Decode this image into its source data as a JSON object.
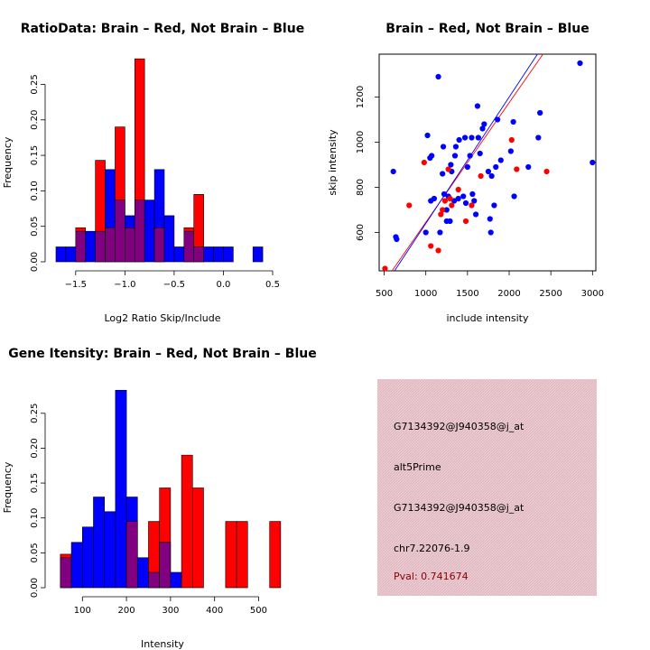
{
  "chart_data": [
    {
      "type": "bar",
      "title": "RatioData: Brain – Red, Not Brain – Blue",
      "xlabel": "Log2 Ratio Skip/Include",
      "ylabel": "Frequency",
      "xlim": [
        -1.7,
        0.5
      ],
      "ylim": [
        0,
        0.29
      ],
      "xticks": [
        -1.5,
        -1.0,
        -0.5,
        0.0,
        0.5
      ],
      "xtick_labels": [
        "−1.5",
        "−1.0",
        "−0.5",
        "0.0",
        "0.5"
      ],
      "yticks": [
        0,
        0.05,
        0.1,
        0.15,
        0.2,
        0.25
      ],
      "ytick_labels": [
        "0.00",
        "0.05",
        "0.10",
        "0.15",
        "0.20",
        "0.25"
      ],
      "series": [
        {
          "name": "Not Brain",
          "color": "#0000ff",
          "bins": [
            [
              -1.7,
              -1.6,
              0.021
            ],
            [
              -1.6,
              -1.5,
              0.021
            ],
            [
              -1.5,
              -1.4,
              0.043
            ],
            [
              -1.4,
              -1.3,
              0.043
            ],
            [
              -1.3,
              -1.2,
              0.043
            ],
            [
              -1.2,
              -1.1,
              0.13
            ],
            [
              -1.1,
              -1.0,
              0.087
            ],
            [
              -1.0,
              -0.9,
              0.065
            ],
            [
              -0.9,
              -0.8,
              0.087
            ],
            [
              -0.8,
              -0.7,
              0.087
            ],
            [
              -0.7,
              -0.6,
              0.13
            ],
            [
              -0.6,
              -0.5,
              0.065
            ],
            [
              -0.5,
              -0.4,
              0.021
            ],
            [
              -0.4,
              -0.3,
              0.043
            ],
            [
              -0.3,
              -0.2,
              0.021
            ],
            [
              -0.2,
              -0.1,
              0.021
            ],
            [
              -0.1,
              0.0,
              0.021
            ],
            [
              0.0,
              0.1,
              0.021
            ],
            [
              0.1,
              0.2,
              0.0
            ],
            [
              0.2,
              0.3,
              0.0
            ],
            [
              0.3,
              0.4,
              0.021
            ]
          ]
        },
        {
          "name": "Brain",
          "color": "#ff0000",
          "bins": [
            [
              -1.5,
              -1.4,
              0.048
            ],
            [
              -1.4,
              -1.3,
              0.0
            ],
            [
              -1.3,
              -1.2,
              0.143
            ],
            [
              -1.2,
              -1.1,
              0.048
            ],
            [
              -1.1,
              -1.0,
              0.19
            ],
            [
              -1.0,
              -0.9,
              0.048
            ],
            [
              -0.9,
              -0.8,
              0.286
            ],
            [
              -0.8,
              -0.7,
              0.0
            ],
            [
              -0.7,
              -0.6,
              0.048
            ],
            [
              -0.6,
              -0.5,
              0.0
            ],
            [
              -0.5,
              -0.4,
              0.0
            ],
            [
              -0.4,
              -0.3,
              0.048
            ],
            [
              -0.3,
              -0.2,
              0.095
            ]
          ]
        }
      ]
    },
    {
      "type": "scatter",
      "title": "Brain – Red, Not Brain – Blue",
      "xlabel": "include intensity",
      "ylabel": "skip intensity",
      "xlim": [
        440,
        3040
      ],
      "ylim": [
        430,
        1390
      ],
      "xticks": [
        500,
        1000,
        1500,
        2000,
        2500,
        3000
      ],
      "xtick_labels": [
        "500",
        "1000",
        "1500",
        "2000",
        "2500",
        "3000"
      ],
      "yticks": [
        600,
        800,
        1000,
        1200
      ],
      "ytick_labels": [
        "600",
        "800",
        "1000",
        "1200"
      ],
      "series": [
        {
          "name": "Not Brain",
          "color": "#0000ff",
          "points": [
            [
              610,
              870
            ],
            [
              640,
              580
            ],
            [
              650,
              570
            ],
            [
              1000,
              600
            ],
            [
              1020,
              1030
            ],
            [
              1050,
              930
            ],
            [
              1060,
              740
            ],
            [
              1070,
              940
            ],
            [
              1100,
              750
            ],
            [
              1150,
              1290
            ],
            [
              1170,
              600
            ],
            [
              1200,
              860
            ],
            [
              1210,
              980
            ],
            [
              1220,
              770
            ],
            [
              1250,
              650
            ],
            [
              1250,
              700
            ],
            [
              1270,
              760
            ],
            [
              1290,
              650
            ],
            [
              1300,
              900
            ],
            [
              1310,
              870
            ],
            [
              1340,
              740
            ],
            [
              1350,
              940
            ],
            [
              1360,
              980
            ],
            [
              1390,
              750
            ],
            [
              1400,
              1010
            ],
            [
              1450,
              760
            ],
            [
              1470,
              1020
            ],
            [
              1480,
              730
            ],
            [
              1500,
              890
            ],
            [
              1530,
              940
            ],
            [
              1550,
              1020
            ],
            [
              1560,
              770
            ],
            [
              1580,
              740
            ],
            [
              1600,
              680
            ],
            [
              1620,
              1160
            ],
            [
              1630,
              1020
            ],
            [
              1650,
              950
            ],
            [
              1680,
              1060
            ],
            [
              1700,
              1080
            ],
            [
              1750,
              870
            ],
            [
              1770,
              660
            ],
            [
              1780,
              600
            ],
            [
              1790,
              850
            ],
            [
              1820,
              720
            ],
            [
              1840,
              890
            ],
            [
              1860,
              1100
            ],
            [
              1900,
              920
            ],
            [
              2020,
              960
            ],
            [
              2050,
              1090
            ],
            [
              2060,
              760
            ],
            [
              2230,
              890
            ],
            [
              2350,
              1020
            ],
            [
              2370,
              1130
            ],
            [
              2850,
              1350
            ],
            [
              3000,
              910
            ]
          ]
        },
        {
          "name": "Brain",
          "color": "#ff0000",
          "points": [
            [
              510,
              440
            ],
            [
              800,
              720
            ],
            [
              980,
              910
            ],
            [
              1060,
              540
            ],
            [
              1150,
              520
            ],
            [
              1180,
              680
            ],
            [
              1200,
              700
            ],
            [
              1230,
              740
            ],
            [
              1270,
              880
            ],
            [
              1290,
              750
            ],
            [
              1310,
              720
            ],
            [
              1390,
              790
            ],
            [
              1480,
              650
            ],
            [
              1550,
              720
            ],
            [
              1660,
              850
            ],
            [
              2030,
              1010
            ],
            [
              2090,
              880
            ],
            [
              2450,
              870
            ]
          ]
        }
      ],
      "fit_lines": [
        {
          "name": "Brain",
          "color": "#ff0000",
          "slope": 0.53,
          "intercept": 115
        },
        {
          "name": "Not Brain",
          "color": "#0000ff",
          "slope": 0.56,
          "intercept": 80
        }
      ]
    },
    {
      "type": "bar",
      "title": "Gene Itensity: Brain – Red, Not Brain – Blue",
      "xlabel": "Intensity",
      "ylabel": "Frequency",
      "xlim": [
        40,
        540
      ],
      "ylim": [
        0,
        0.295
      ],
      "xticks": [
        100,
        200,
        300,
        400,
        500
      ],
      "xtick_labels": [
        "100",
        "200",
        "300",
        "400",
        "500"
      ],
      "yticks": [
        0,
        0.05,
        0.1,
        0.15,
        0.2,
        0.25
      ],
      "ytick_labels": [
        "0.00",
        "0.05",
        "0.10",
        "0.15",
        "0.20",
        "0.25"
      ],
      "series": [
        {
          "name": "Not Brain",
          "color": "#0000ff",
          "bins": [
            [
              50,
              75,
              0.043
            ],
            [
              75,
              100,
              0.065
            ],
            [
              100,
              125,
              0.087
            ],
            [
              125,
              150,
              0.13
            ],
            [
              150,
              175,
              0.109
            ],
            [
              175,
              200,
              0.283
            ],
            [
              200,
              225,
              0.13
            ],
            [
              225,
              250,
              0.043
            ],
            [
              250,
              275,
              0.022
            ],
            [
              275,
              300,
              0.065
            ],
            [
              300,
              325,
              0.022
            ]
          ]
        },
        {
          "name": "Brain",
          "color": "#ff0000",
          "bins": [
            [
              50,
              75,
              0.048
            ],
            [
              200,
              225,
              0.095
            ],
            [
              250,
              275,
              0.095
            ],
            [
              275,
              300,
              0.143
            ],
            [
              325,
              350,
              0.19
            ],
            [
              350,
              375,
              0.143
            ],
            [
              425,
              450,
              0.095
            ],
            [
              450,
              475,
              0.095
            ],
            [
              525,
              550,
              0.095
            ]
          ]
        }
      ]
    }
  ],
  "info_panel": {
    "line1": "G7134392@J940358@j_at",
    "line2": "alt5Prime",
    "line3": "G7134392@J940358@j_at",
    "line4": "chr7.22076-1.9",
    "pval": "Pval: 0.741674",
    "bg_color": "#e8c6cc",
    "pval_color": "#8b0000"
  },
  "colors": {
    "red": "#ff0000",
    "blue": "#0000ff",
    "overlap": "#800080"
  }
}
